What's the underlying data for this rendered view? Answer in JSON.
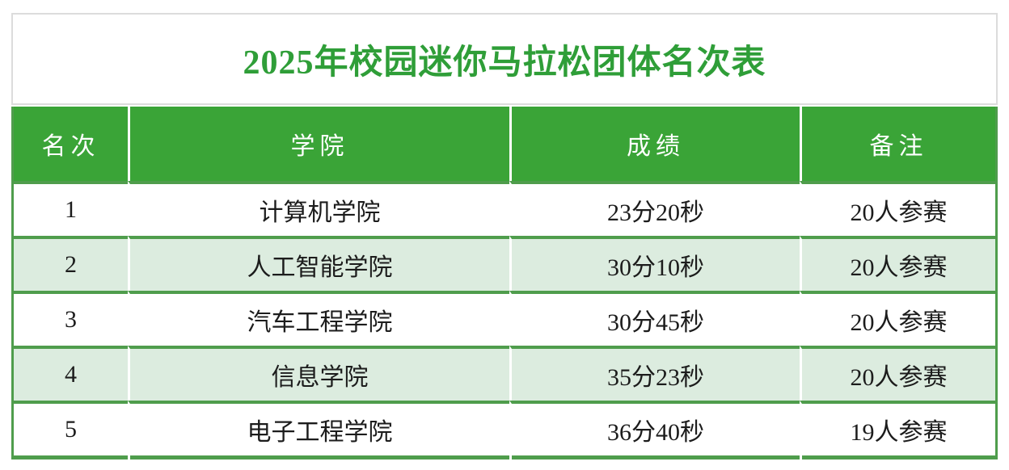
{
  "title": "2025年校园迷你马拉松团体名次表",
  "colors": {
    "header_bg": "#3aa437",
    "border_green": "#4f9d4c",
    "alt_row_bg": "#dcecdf",
    "title_green": "#2f9e38"
  },
  "table": {
    "headers": [
      "名次",
      "学院",
      "成绩",
      "备注"
    ],
    "rows": [
      [
        "1",
        "计算机学院",
        "23分20秒",
        "20人参赛"
      ],
      [
        "2",
        "人工智能学院",
        "30分10秒",
        "20人参赛"
      ],
      [
        "3",
        "汽车工程学院",
        "30分45秒",
        "20人参赛"
      ],
      [
        "4",
        "信息学院",
        "35分23秒",
        "20人参赛"
      ],
      [
        "5",
        "电子工程学院",
        "36分40秒",
        "19人参赛"
      ]
    ]
  }
}
